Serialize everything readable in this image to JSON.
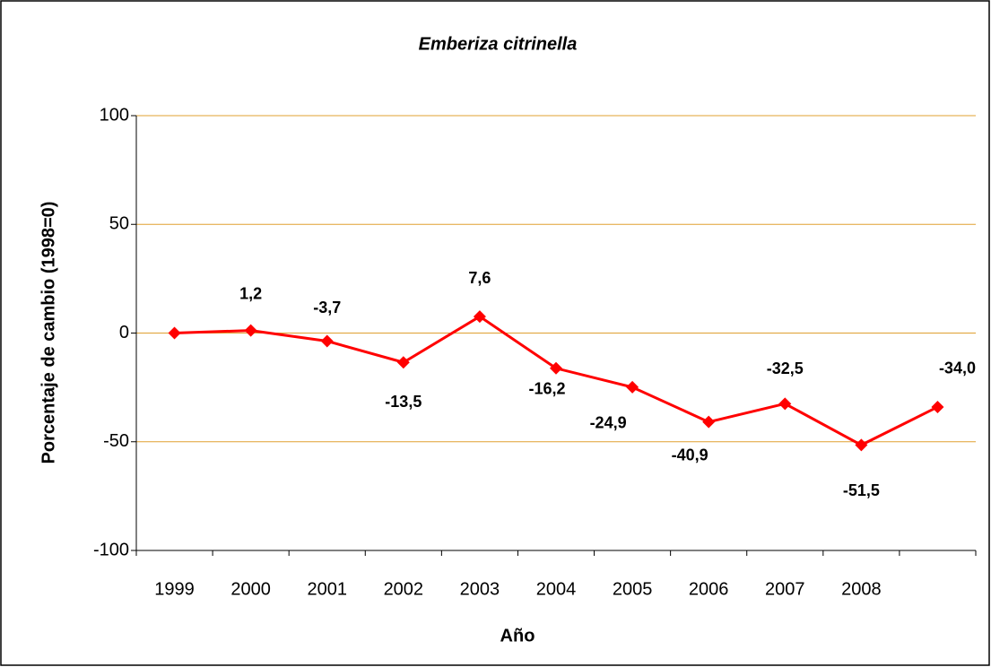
{
  "chart_data": {
    "type": "line",
    "title": "Emberiza citrinella",
    "x_label": "Año",
    "y_label": "Porcentaje de cambio (1998=0)",
    "categories": [
      "1999",
      "2000",
      "2001",
      "2002",
      "2003",
      "2004",
      "2005",
      "2006",
      "2007",
      "2008",
      null
    ],
    "series": [
      {
        "name": "Emberiza citrinella",
        "color": "#ff0000",
        "values": [
          0,
          1.2,
          -3.7,
          -13.5,
          7.6,
          -16.2,
          -24.9,
          -40.9,
          -32.5,
          -51.5,
          -34.0
        ],
        "value_labels": [
          null,
          "1,2",
          "-3,7",
          "-13,5",
          "7,6",
          "-16,2",
          "-24,9",
          "-40,9",
          "-32,5",
          "-51,5",
          "-34,0"
        ]
      }
    ],
    "ylim": [
      -100,
      100
    ],
    "yticks": [
      -100,
      -50,
      0,
      50,
      100
    ],
    "grid": true,
    "grid_color": "#e0a030"
  }
}
